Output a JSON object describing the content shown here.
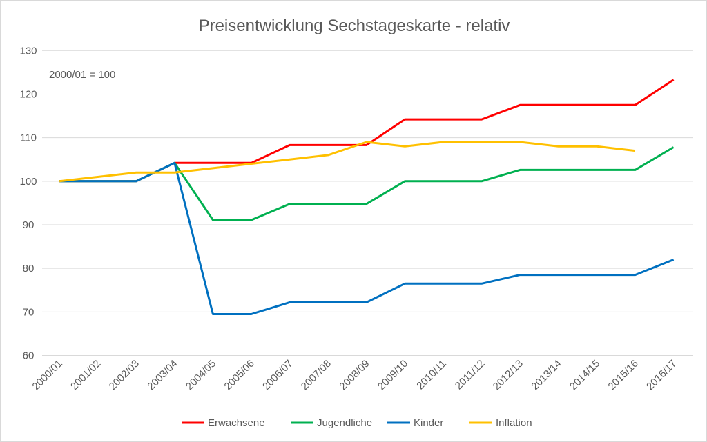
{
  "chart_data": {
    "type": "line",
    "title": "Preisentwicklung Sechstageskarte - relativ",
    "annotation": "2000/01 = 100",
    "xlabel": "",
    "ylabel": "",
    "ylim": [
      60,
      130
    ],
    "yticks": [
      60,
      70,
      80,
      90,
      100,
      110,
      120,
      130
    ],
    "grid": true,
    "legend_position": "bottom",
    "categories": [
      "2000/01",
      "2001/02",
      "2002/03",
      "2003/04",
      "2004/05",
      "2005/06",
      "2006/07",
      "2007/08",
      "2008/09",
      "2009/10",
      "2010/11",
      "2011/12",
      "2012/13",
      "2013/14",
      "2014/15",
      "2015/16",
      "2016/17"
    ],
    "series": [
      {
        "name": "Erwachsene",
        "color": "#ff0000",
        "values": [
          100,
          100,
          100,
          104.2,
          104.2,
          104.2,
          108.3,
          108.3,
          108.3,
          114.2,
          114.2,
          114.2,
          117.5,
          117.5,
          117.5,
          117.5,
          123.3
        ]
      },
      {
        "name": "Jugendliche",
        "color": "#00b050",
        "values": [
          100,
          100,
          100,
          104.2,
          91.1,
          91.1,
          94.8,
          94.8,
          94.8,
          100,
          100,
          100,
          102.6,
          102.6,
          102.6,
          102.6,
          107.8
        ]
      },
      {
        "name": "Kinder",
        "color": "#0070c0",
        "values": [
          100,
          100,
          100,
          104.2,
          69.5,
          69.5,
          72.2,
          72.2,
          72.2,
          76.5,
          76.5,
          76.5,
          78.5,
          78.5,
          78.5,
          78.5,
          82.0
        ]
      },
      {
        "name": "Inflation",
        "color": "#ffc000",
        "values": [
          100,
          101,
          102,
          102,
          103,
          104,
          105,
          106,
          109,
          108,
          109,
          109,
          109,
          108,
          108,
          107,
          null
        ]
      }
    ]
  }
}
